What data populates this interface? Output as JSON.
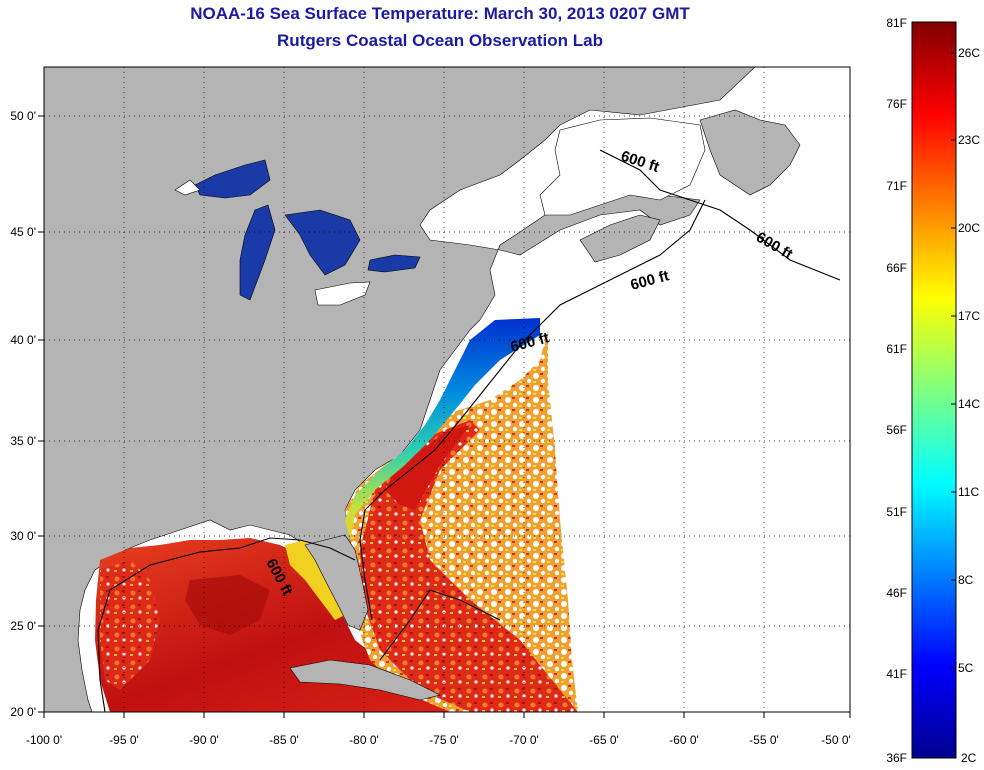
{
  "header": {
    "title": "NOAA-16 Sea Surface Temperature:  March 30, 2013 0207 GMT",
    "subtitle": "Rutgers Coastal Ocean Observation Lab"
  },
  "map": {
    "lat_ticks": [
      "50 0'",
      "45 0'",
      "40 0'",
      "35 0'",
      "30 0'",
      "25 0'",
      "20 0'"
    ],
    "lon_ticks": [
      "-100 0'",
      "-95 0'",
      "-90 0'",
      "-85 0'",
      "-80 0'",
      "-75 0'",
      "-70 0'",
      "-65 0'",
      "-60 0'",
      "-55 0'",
      "-50 0'"
    ],
    "contour_label": "600 ft",
    "colors": {
      "land": "#b4b4b4",
      "great_lakes": "#1a3aa8",
      "cloud": "#ffffff"
    }
  },
  "colorbar": {
    "fahrenheit": [
      "81F",
      "76F",
      "71F",
      "66F",
      "61F",
      "56F",
      "51F",
      "46F",
      "41F",
      "36F"
    ],
    "celsius": [
      "26C",
      "23C",
      "20C",
      "17C",
      "14C",
      "11C",
      "8C",
      "5C",
      "2C"
    ]
  }
}
